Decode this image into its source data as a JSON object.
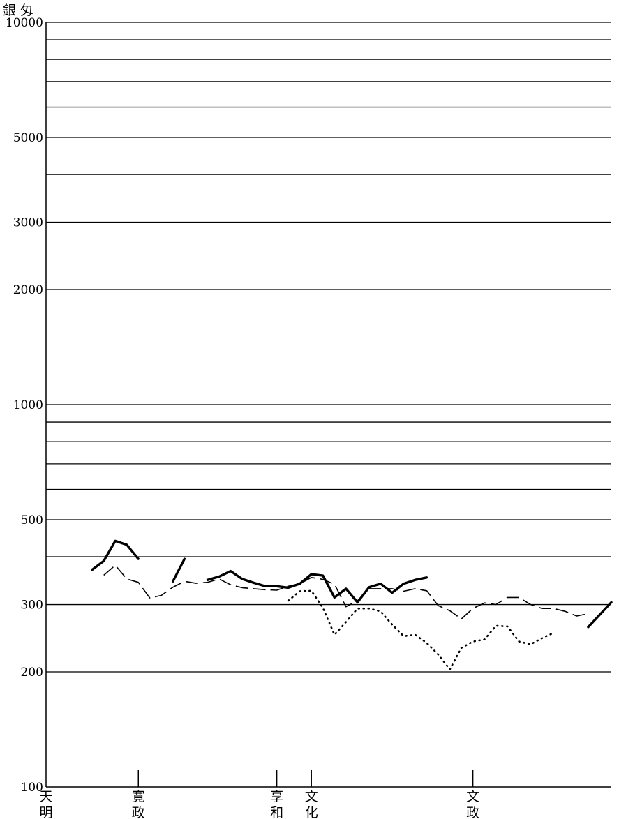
{
  "chart_data": {
    "type": "line",
    "title": "",
    "y_unit_label": "銀 匁",
    "yscale": "log",
    "ylim": [
      100,
      10000
    ],
    "y_gridlines": [
      200,
      300,
      400,
      500,
      600,
      700,
      800,
      900,
      1000,
      2000,
      3000,
      4000,
      5000,
      6000,
      7000,
      8000,
      9000,
      10000
    ],
    "y_tick_labels": [
      {
        "value": 100,
        "text": "100"
      },
      {
        "value": 200,
        "text": "200"
      },
      {
        "value": 300,
        "text": "300"
      },
      {
        "value": 500,
        "text": "500"
      },
      {
        "value": 1000,
        "text": "1000"
      },
      {
        "value": 2000,
        "text": "2000"
      },
      {
        "value": 3000,
        "text": "3000"
      },
      {
        "value": 5000,
        "text": "5000"
      },
      {
        "value": 10000,
        "text": "10000"
      }
    ],
    "xlim": [
      1781,
      1830
    ],
    "era_markers": [
      {
        "year": 1781,
        "label": "天\n明"
      },
      {
        "year": 1789,
        "label": "寛\n政"
      },
      {
        "year": 1801,
        "label": "享\n和"
      },
      {
        "year": 1804,
        "label": "文\n化"
      },
      {
        "year": 1818,
        "label": "文\n政"
      }
    ],
    "series": [
      {
        "style": "solid-bold",
        "segments": [
          [
            [
              1785,
              370
            ],
            [
              1786,
              390
            ],
            [
              1787,
              440
            ],
            [
              1788,
              430
            ],
            [
              1789,
              395
            ]
          ],
          [
            [
              1792,
              345
            ],
            [
              1793,
              395
            ]
          ],
          [
            [
              1795,
              348
            ],
            [
              1796,
              355
            ],
            [
              1797,
              367
            ],
            [
              1798,
              350
            ],
            [
              1799,
              342
            ],
            [
              1800,
              335
            ],
            [
              1801,
              335
            ],
            [
              1802,
              332
            ],
            [
              1803,
              340
            ],
            [
              1804,
              360
            ],
            [
              1805,
              357
            ],
            [
              1806,
              313
            ],
            [
              1807,
              330
            ],
            [
              1808,
              304
            ],
            [
              1809,
              333
            ],
            [
              1810,
              340
            ],
            [
              1811,
              322
            ],
            [
              1812,
              340
            ],
            [
              1813,
              348
            ],
            [
              1814,
              353
            ]
          ],
          [
            [
              1828,
              262
            ],
            [
              1830,
              304
            ]
          ]
        ]
      },
      {
        "style": "dashed",
        "segments": [
          [
            [
              1786,
              358
            ],
            [
              1787,
              380
            ],
            [
              1788,
              350
            ],
            [
              1789,
              343
            ],
            [
              1790,
              312
            ],
            [
              1791,
              317
            ],
            [
              1792,
              333
            ],
            [
              1793,
              345
            ],
            [
              1794,
              341
            ],
            [
              1795,
              343
            ],
            [
              1796,
              350
            ],
            [
              1797,
              338
            ],
            [
              1798,
              332
            ],
            [
              1799,
              330
            ],
            [
              1800,
              328
            ],
            [
              1801,
              327
            ],
            [
              1802,
              335
            ],
            [
              1803,
              340
            ],
            [
              1804,
              353
            ],
            [
              1805,
              349
            ],
            [
              1806,
              339
            ],
            [
              1807,
              296
            ],
            [
              1808,
              307
            ],
            [
              1809,
              330
            ],
            [
              1810,
              330
            ],
            [
              1811,
              330
            ],
            [
              1812,
              325
            ],
            [
              1813,
              330
            ],
            [
              1814,
              326
            ],
            [
              1815,
              298
            ],
            [
              1816,
              289
            ],
            [
              1817,
              275
            ],
            [
              1818,
              293
            ],
            [
              1819,
              303
            ],
            [
              1820,
              300
            ],
            [
              1821,
              313
            ],
            [
              1822,
              313
            ],
            [
              1823,
              300
            ],
            [
              1824,
              293
            ],
            [
              1825,
              293
            ],
            [
              1826,
              288
            ],
            [
              1827,
              280
            ],
            [
              1828,
              284
            ]
          ]
        ]
      },
      {
        "style": "dotted",
        "segments": [
          [
            [
              1802,
              307
            ],
            [
              1803,
              325
            ],
            [
              1804,
              326
            ],
            [
              1805,
              294
            ],
            [
              1806,
              250
            ],
            [
              1807,
              270
            ],
            [
              1808,
              293
            ],
            [
              1809,
              293
            ],
            [
              1810,
              288
            ],
            [
              1811,
              266
            ],
            [
              1812,
              248
            ],
            [
              1813,
              250
            ],
            [
              1814,
              238
            ],
            [
              1815,
              222
            ],
            [
              1816,
              203
            ],
            [
              1817,
              231
            ],
            [
              1818,
              240
            ],
            [
              1819,
              243
            ],
            [
              1820,
              264
            ],
            [
              1821,
              263
            ],
            [
              1822,
              240
            ],
            [
              1823,
              236
            ],
            [
              1824,
              245
            ],
            [
              1825,
              253
            ]
          ]
        ]
      }
    ]
  }
}
